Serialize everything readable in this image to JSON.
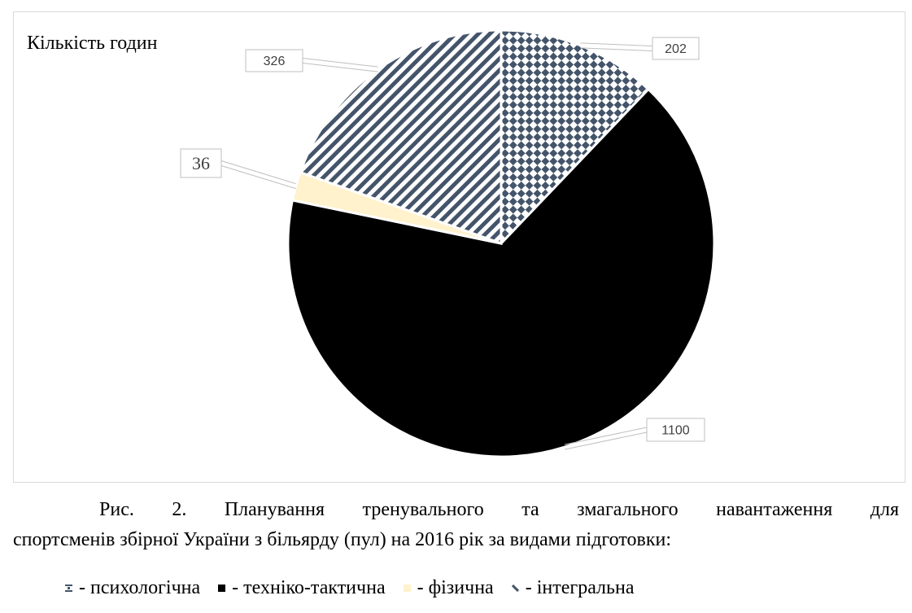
{
  "chart_data": {
    "type": "pie",
    "title": "Кількість годин",
    "slices": [
      {
        "label": "психологічна",
        "value": 202,
        "data_label": "202",
        "color": "#44546a",
        "pattern": "checker"
      },
      {
        "label": "техніко-тактична",
        "value": 1100,
        "data_label": "1100",
        "color": "#000000",
        "pattern": "solid"
      },
      {
        "label": "фізична",
        "value": 36,
        "data_label": "36",
        "color": "#fff2cc",
        "pattern": "solid"
      },
      {
        "label": "інтегральна",
        "value": 326,
        "data_label": "326",
        "color": "#44546a",
        "pattern": "diagonal"
      }
    ],
    "start_angle_deg": 0,
    "direction": "clockwise"
  },
  "caption": {
    "line1": "Рис. 2. Планування тренувального та змагального навантаження для",
    "line2": "спортсменів збірної України з більярду (пул) на 2016 рік за видами підготовки:"
  },
  "legend": [
    {
      "text": "- психологічна"
    },
    {
      "text": "- техніко-тактична"
    },
    {
      "text": "- фізична"
    },
    {
      "text": "- інтегральна"
    }
  ]
}
